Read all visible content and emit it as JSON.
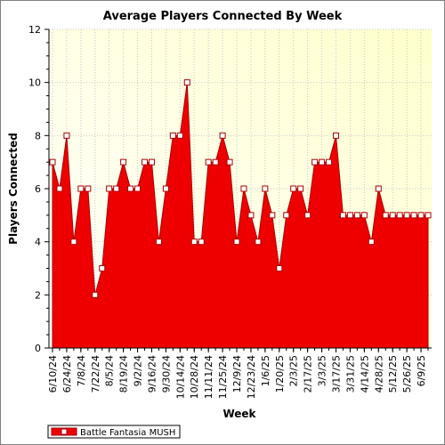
{
  "chart_data": {
    "type": "area",
    "title": "Average Players Connected By Week",
    "xlabel": "Week",
    "ylabel": "Players Connected",
    "ylim": [
      0,
      12
    ],
    "y_ticks": [
      0,
      2,
      4,
      6,
      8,
      10,
      12
    ],
    "grid": true,
    "legend_position": "bottom-left",
    "x_tick_labels": [
      "6/10/24",
      "6/24/24",
      "7/8/24",
      "7/22/24",
      "8/5/24",
      "8/19/24",
      "9/2/24",
      "9/16/24",
      "9/30/24",
      "10/14/24",
      "10/28/24",
      "11/11/24",
      "11/25/24",
      "12/9/24",
      "12/23/24",
      "1/6/25",
      "1/20/25",
      "2/3/25",
      "2/17/25",
      "3/3/25",
      "3/17/25",
      "3/31/25",
      "4/14/25",
      "4/28/25",
      "5/12/25",
      "5/26/25",
      "6/9/25"
    ],
    "x": [
      "6/10/24",
      "6/17/24",
      "6/24/24",
      "7/1/24",
      "7/8/24",
      "7/15/24",
      "7/22/24",
      "7/29/24",
      "8/5/24",
      "8/12/24",
      "8/19/24",
      "8/26/24",
      "9/2/24",
      "9/9/24",
      "9/16/24",
      "9/23/24",
      "9/30/24",
      "10/7/24",
      "10/14/24",
      "10/21/24",
      "10/28/24",
      "11/4/24",
      "11/11/24",
      "11/18/24",
      "11/25/24",
      "12/2/24",
      "12/9/24",
      "12/16/24",
      "12/23/24",
      "12/30/24",
      "1/6/25",
      "1/13/25",
      "1/20/25",
      "1/27/25",
      "2/3/25",
      "2/10/25",
      "2/17/25",
      "2/24/25",
      "3/3/25",
      "3/10/25",
      "3/17/25",
      "3/24/25",
      "3/31/25",
      "4/7/25",
      "4/14/25",
      "4/21/25",
      "4/28/25",
      "5/5/25",
      "5/12/25",
      "5/19/25",
      "5/26/25",
      "6/2/25",
      "6/9/25",
      "6/16/25"
    ],
    "series": [
      {
        "name": "Battle Fantasia MUSH",
        "color": "#ee0000",
        "values": [
          7,
          6,
          8,
          4,
          6,
          6,
          2,
          3,
          6,
          6,
          7,
          6,
          6,
          7,
          7,
          4,
          6,
          8,
          8,
          10,
          4,
          4,
          7,
          7,
          8,
          7,
          4,
          6,
          5,
          4,
          6,
          5,
          3,
          5,
          6,
          6,
          5,
          7,
          7,
          7,
          8,
          5,
          5,
          5,
          5,
          4,
          6,
          5,
          5,
          5,
          5,
          5,
          5,
          5
        ]
      }
    ]
  },
  "colors": {
    "plot_background_top": "#ffffcc",
    "plot_background_bottom": "#ffffff",
    "area_fill": "#ee0000",
    "area_line": "#aa0000",
    "marker_fill": "#ffffff"
  }
}
